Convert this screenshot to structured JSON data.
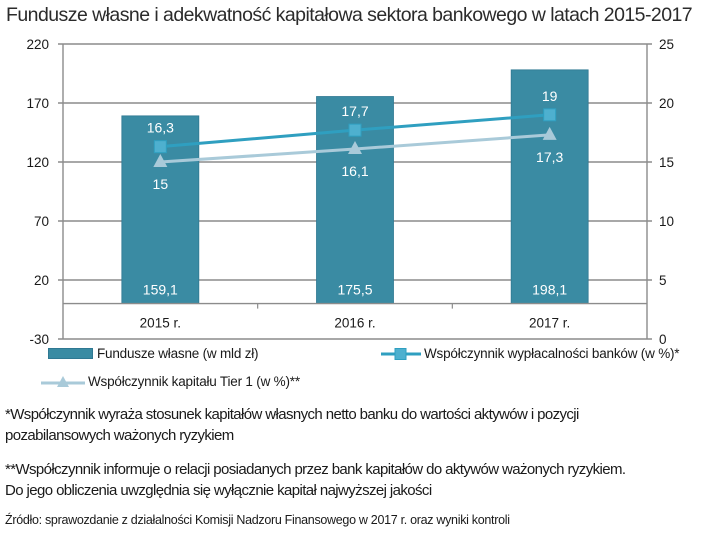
{
  "title": "Fundusze własne i adekwatność kapitałowa sektora bankowego w latach 2015-2017",
  "colors": {
    "bar": "#3a8ba3",
    "solvency_line": "#2f9fc0",
    "tier1_line": "#a9cad9",
    "grid": "#8c8c8c"
  },
  "chart_data": {
    "type": "bar",
    "title": "Fundusze własne i adekwatność kapitałowa sektora bankowego w latach 2015-2017",
    "categories": [
      "2015 r.",
      "2016 r.",
      "2017 r."
    ],
    "xlabel": "",
    "ylabel": "",
    "ylim": [
      -30,
      220
    ],
    "y2lim": [
      0,
      25
    ],
    "left_ticks": [
      "220",
      "170",
      "120",
      "70",
      "20",
      "-30"
    ],
    "right_ticks": [
      "25",
      "20",
      "15",
      "10",
      "5",
      "0"
    ],
    "grid": true,
    "legend_position": "bottom",
    "series": [
      {
        "name": "Fundusze własne (w mld zł)",
        "type": "bar",
        "axis": "left",
        "values": [
          159.1,
          175.5,
          198.1
        ],
        "labels": [
          "159,1",
          "175,5",
          "198,1"
        ]
      },
      {
        "name": "Współczynnik wypłacalności banków (w %)*",
        "type": "line",
        "marker": "square",
        "axis": "right",
        "values": [
          16.3,
          17.7,
          19
        ],
        "labels": [
          "16,3",
          "17,7",
          "19"
        ]
      },
      {
        "name": "Współczynnik kapitału Tier 1 (w %)**",
        "type": "line",
        "marker": "triangle",
        "axis": "right",
        "values": [
          15,
          16.1,
          17.3
        ],
        "labels": [
          "15",
          "16,1",
          "17,3"
        ]
      }
    ]
  },
  "legend": {
    "bar": "Fundusze własne (w mld zł)",
    "solvency": "Współczynnik wypłacalności banków (w %)*",
    "tier1": "Współczynnik kapitału Tier 1 (w %)**"
  },
  "notes": {
    "note1_line1": "*Współczynnik wyraża stosunek kapitałów własnych netto banku do wartości aktywów i pozycji",
    "note1_line2": "pozabilansowych ważonych ryzykiem",
    "note2_line1": "**Współczynnik informuje o relacji posiadanych przez bank kapitałów do aktywów ważonych ryzykiem.",
    "note2_line2": "Do  jego obliczenia uwzględnia się wyłącznie kapitał najwyższej jakości"
  },
  "source": "Źródło: sprawozdanie z działalności  Komisji  Nadzoru Finansowego w 2017 r. oraz wyniki kontroli"
}
